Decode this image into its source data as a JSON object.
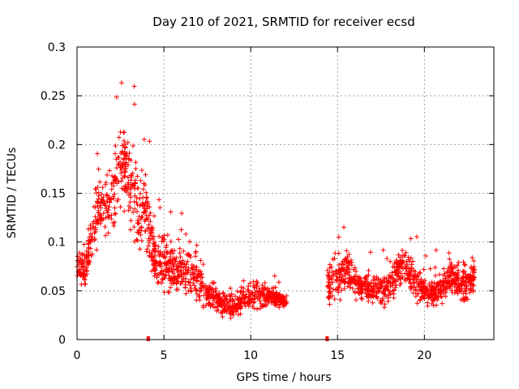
{
  "chart_data": {
    "type": "scatter",
    "title": "Day 210 of 2021, SRMTID for receiver ecsd",
    "xlabel": "GPS time / hours",
    "ylabel": "SRMTID / TECUs",
    "xlim": [
      0,
      24
    ],
    "ylim": [
      0,
      0.3
    ],
    "xticks": [
      0,
      5,
      10,
      15,
      20
    ],
    "xtick_labels": [
      "0",
      "5",
      "10",
      "15",
      "20"
    ],
    "yticks": [
      0,
      0.05,
      0.1,
      0.15,
      0.2,
      0.25,
      0.3
    ],
    "ytick_labels": [
      "0",
      "0.05",
      "0.1",
      "0.15",
      "0.2",
      "0.25",
      "0.3"
    ],
    "grid": true,
    "marker": "plus",
    "series": [
      {
        "name": "SRMTID",
        "color": "#ff0000",
        "envelope": [
          {
            "x": 0.0,
            "y": 0.08,
            "spread": 0.02
          },
          {
            "x": 0.5,
            "y": 0.07,
            "spread": 0.03
          },
          {
            "x": 1.0,
            "y": 0.12,
            "spread": 0.04
          },
          {
            "x": 1.5,
            "y": 0.14,
            "spread": 0.04
          },
          {
            "x": 2.0,
            "y": 0.14,
            "spread": 0.05
          },
          {
            "x": 2.5,
            "y": 0.18,
            "spread": 0.06
          },
          {
            "x": 3.0,
            "y": 0.17,
            "spread": 0.07
          },
          {
            "x": 3.5,
            "y": 0.14,
            "spread": 0.06
          },
          {
            "x": 4.0,
            "y": 0.13,
            "spread": 0.06
          },
          {
            "x": 4.5,
            "y": 0.08,
            "spread": 0.03
          },
          {
            "x": 5.0,
            "y": 0.08,
            "spread": 0.04
          },
          {
            "x": 5.5,
            "y": 0.07,
            "spread": 0.03
          },
          {
            "x": 6.0,
            "y": 0.07,
            "spread": 0.03
          },
          {
            "x": 6.5,
            "y": 0.07,
            "spread": 0.04
          },
          {
            "x": 7.0,
            "y": 0.06,
            "spread": 0.03
          },
          {
            "x": 7.5,
            "y": 0.045,
            "spread": 0.02
          },
          {
            "x": 8.0,
            "y": 0.04,
            "spread": 0.02
          },
          {
            "x": 9.0,
            "y": 0.035,
            "spread": 0.02
          },
          {
            "x": 10.0,
            "y": 0.045,
            "spread": 0.02
          },
          {
            "x": 11.0,
            "y": 0.045,
            "spread": 0.015
          },
          {
            "x": 12.0,
            "y": 0.04,
            "spread": 0.01
          },
          {
            "x": 14.5,
            "y": 0.055,
            "spread": 0.03
          },
          {
            "x": 15.0,
            "y": 0.065,
            "spread": 0.03
          },
          {
            "x": 15.5,
            "y": 0.07,
            "spread": 0.03
          },
          {
            "x": 16.0,
            "y": 0.06,
            "spread": 0.02
          },
          {
            "x": 17.0,
            "y": 0.05,
            "spread": 0.02
          },
          {
            "x": 18.0,
            "y": 0.055,
            "spread": 0.025
          },
          {
            "x": 18.7,
            "y": 0.08,
            "spread": 0.03
          },
          {
            "x": 19.5,
            "y": 0.06,
            "spread": 0.025
          },
          {
            "x": 20.5,
            "y": 0.045,
            "spread": 0.02
          },
          {
            "x": 21.5,
            "y": 0.065,
            "spread": 0.025
          },
          {
            "x": 22.5,
            "y": 0.055,
            "spread": 0.025
          },
          {
            "x": 22.9,
            "y": 0.065,
            "spread": 0.02
          }
        ],
        "gaps": [
          [
            12.1,
            14.4
          ]
        ]
      }
    ],
    "markers_on_axis": [
      {
        "x": 4.1,
        "y": 0,
        "color": "#ff0000"
      },
      {
        "x": 14.4,
        "y": 0,
        "color": "#ff0000"
      }
    ]
  }
}
